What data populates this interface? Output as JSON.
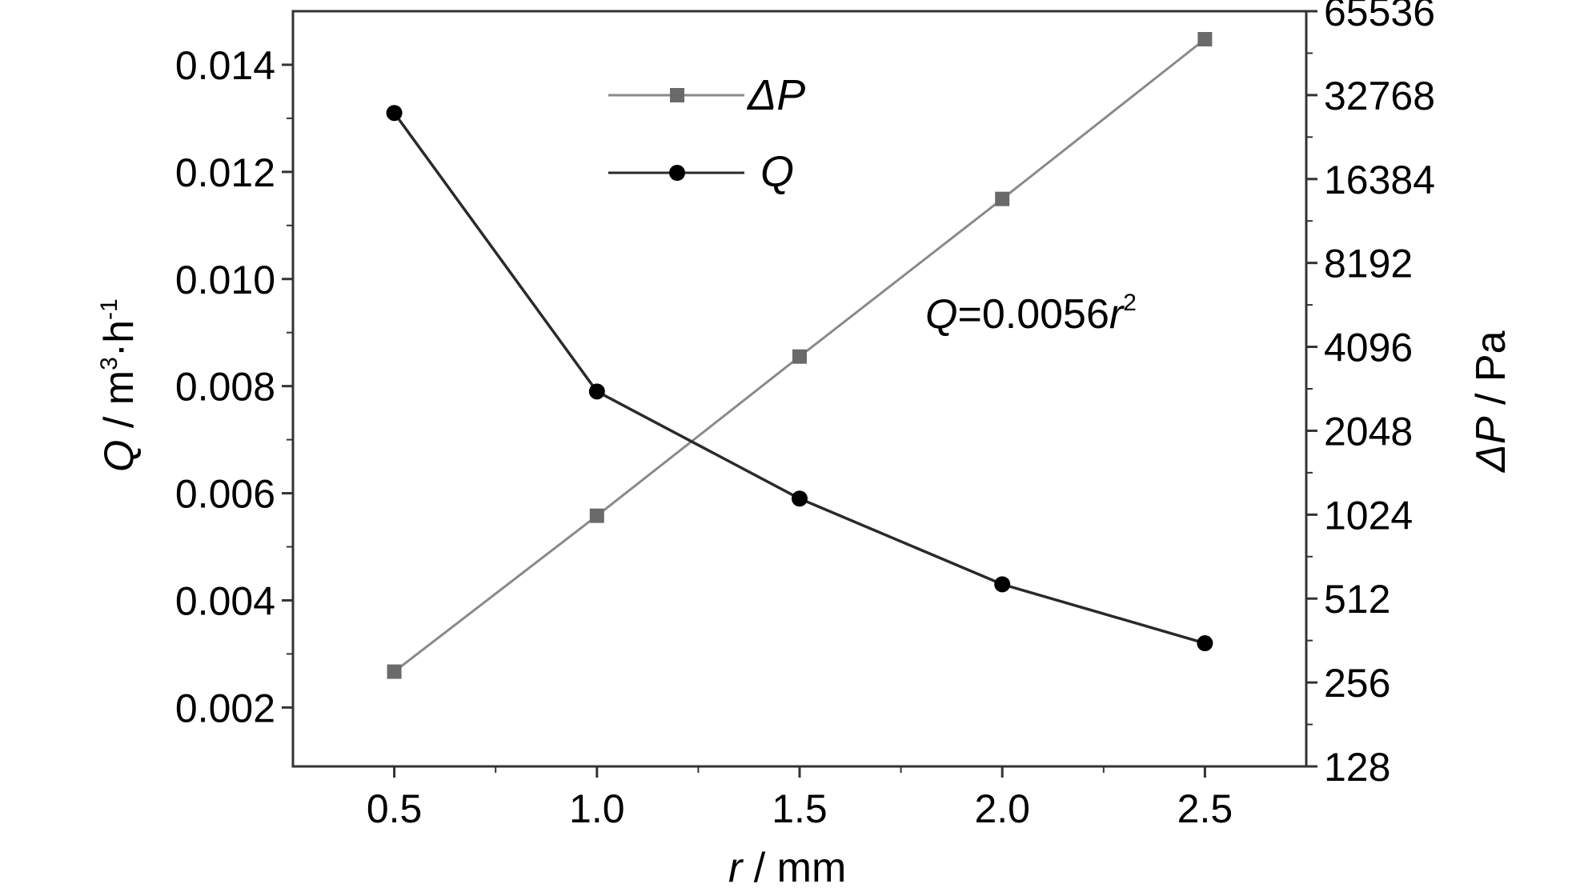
{
  "chart_data": {
    "type": "line",
    "x": [
      0.5,
      1.0,
      1.5,
      2.0,
      2.5
    ],
    "xlabel": {
      "var": "r",
      "unit": " / mm"
    },
    "xlim": [
      0.25,
      2.75
    ],
    "xticks": [
      "0.5",
      "1.0",
      "1.5",
      "2.0",
      "2.5"
    ],
    "ylabel_left": {
      "var": "Q",
      "unit": " / m",
      "sup1": "3",
      "mid": "·h",
      "sup2": "-1"
    },
    "ylim_left": [
      0.0009,
      0.015
    ],
    "yticks_left": [
      "0.002",
      "0.004",
      "0.006",
      "0.008",
      "0.010",
      "0.012",
      "0.014"
    ],
    "ylabel_right": {
      "var": "ΔP",
      "unit": " / Pa"
    },
    "ylim_right": [
      128,
      65536
    ],
    "yscale_right": "log2",
    "yticks_right": [
      "128",
      "256",
      "512",
      "1024",
      "2048",
      "4096",
      "8192",
      "16384",
      "32768",
      "65536"
    ],
    "series": [
      {
        "name": "ΔP",
        "axis": "right",
        "marker": "square",
        "color": "#8a8a8a",
        "values": [
          280,
          1015,
          3780,
          13900,
          52000
        ]
      },
      {
        "name": "Q",
        "axis": "left",
        "marker": "circle",
        "color": "#2a2a2a",
        "values": [
          0.0131,
          0.0079,
          0.0059,
          0.0043,
          0.0032
        ]
      }
    ],
    "annotation": {
      "var": "Q",
      "text": "=0.0056",
      "var2": "r",
      "sup": "2"
    },
    "legend_position": "top-center",
    "grid": false
  }
}
